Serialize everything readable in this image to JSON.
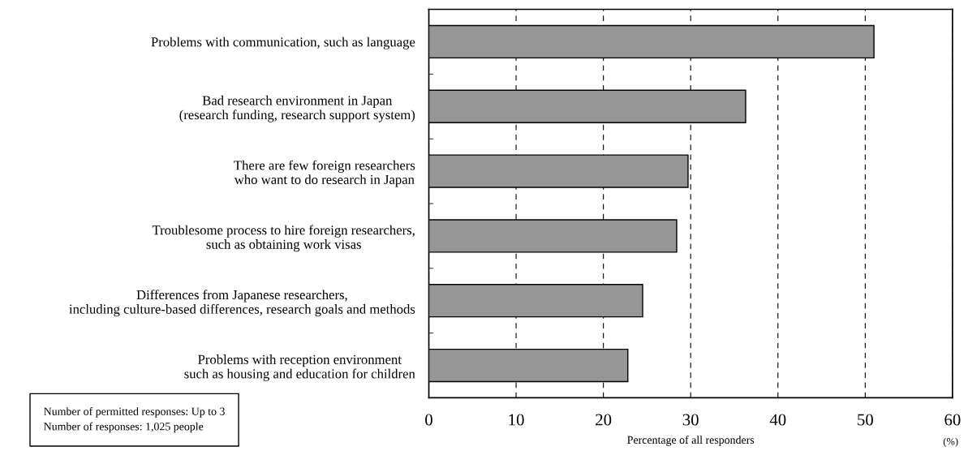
{
  "chart_data": {
    "type": "bar",
    "orientation": "horizontal",
    "xlabel": "Percentage of all responders",
    "categories": [
      "Problems with communication, such as language",
      "Bad research environment in Japan\n(research funding, research support system)",
      "There are few foreign researchers\nwho want to do research in Japan",
      "Troublesome process to hire foreign researchers,\nsuch as obtaining work visas",
      "Differences from Japanese researchers,\nincluding culture-based differences, research goals and methods",
      "Problems with reception environment\nsuch as housing and education for children"
    ],
    "values": [
      51.0,
      36.3,
      29.7,
      28.4,
      24.5,
      22.8
    ],
    "color": "#969696",
    "xlim": [
      0,
      60
    ],
    "xticks": [
      0,
      10,
      20,
      30,
      40,
      50,
      60
    ],
    "grid": "x",
    "line_style": "dashed",
    "annotations": [
      "Number of permitted responses: Up to 3\nNumber of responses: 1,025 people",
      "(%)"
    ]
  }
}
